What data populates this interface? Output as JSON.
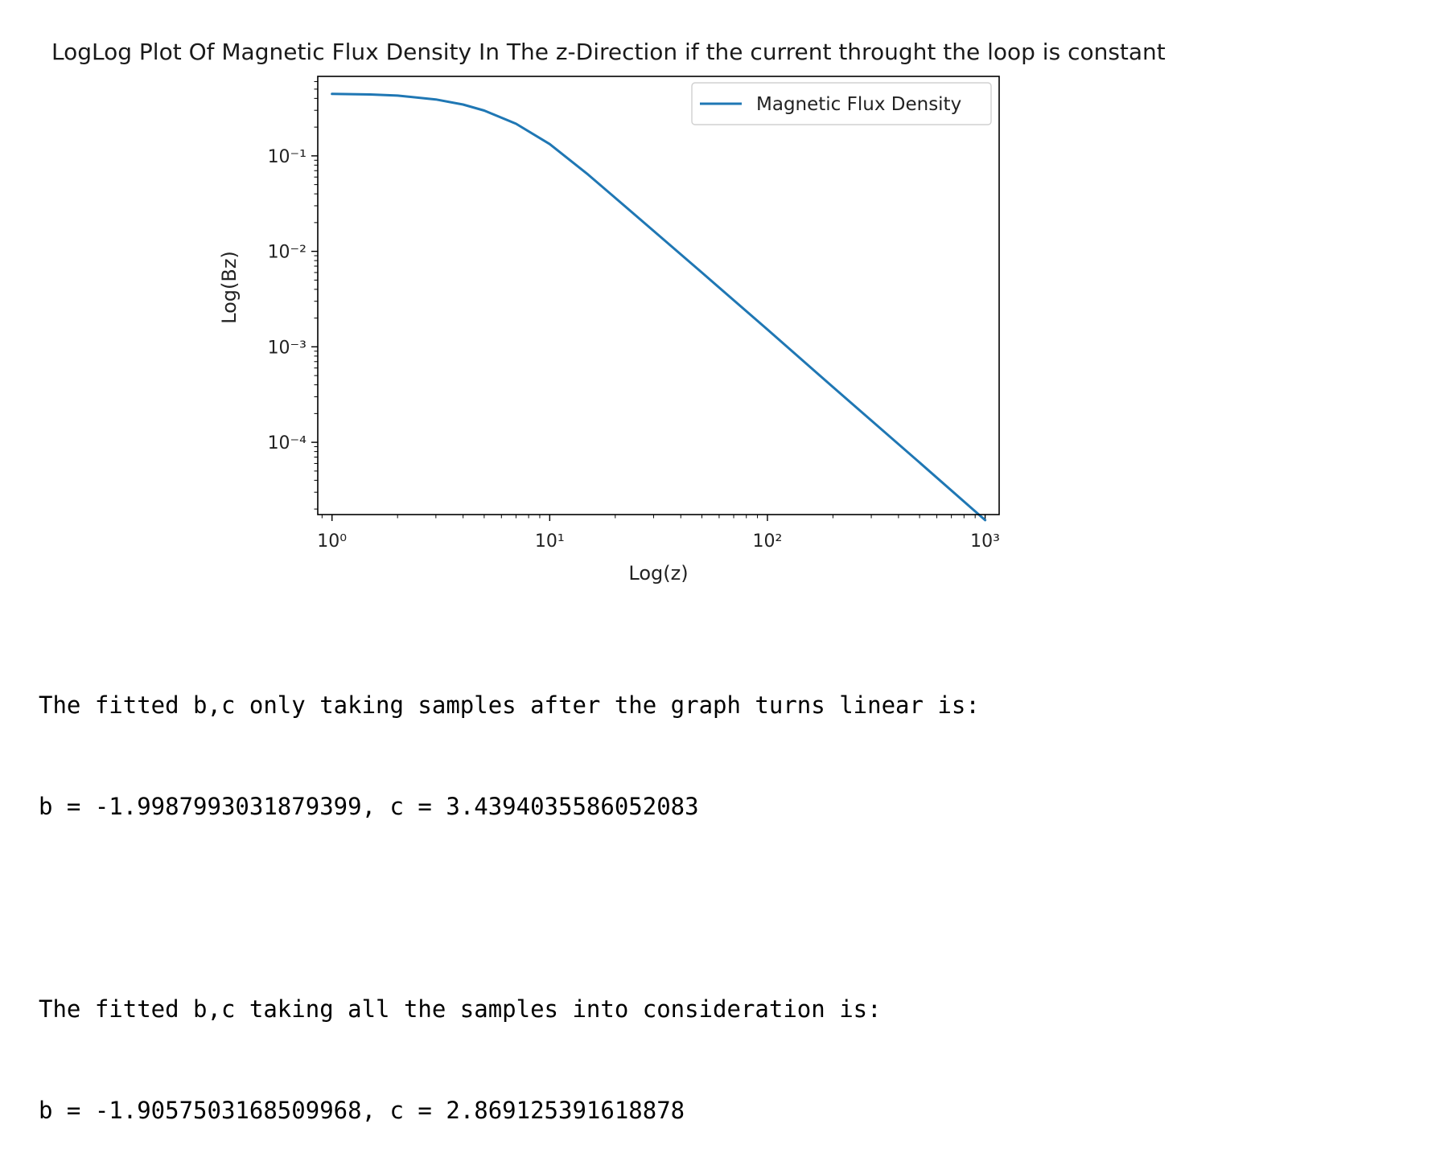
{
  "chart_data": {
    "type": "line",
    "title": "LogLog Plot Of Magnetic Flux Density In The z-Direction if the current throught the loop is constant",
    "xlabel": "Log(z)",
    "ylabel": "Log(Bz)",
    "xscale": "log",
    "yscale": "log",
    "xlim": [
      0.86,
      1160
    ],
    "ylim": [
      1.75e-05,
      0.68
    ],
    "x_ticks": [
      {
        "value": 1,
        "label": "10⁰"
      },
      {
        "value": 10,
        "label": "10¹"
      },
      {
        "value": 100,
        "label": "10²"
      },
      {
        "value": 1000,
        "label": "10³"
      }
    ],
    "y_ticks": [
      {
        "value": 0.1,
        "label": "10⁻¹"
      },
      {
        "value": 0.01,
        "label": "10⁻²"
      },
      {
        "value": 0.001,
        "label": "10⁻³"
      },
      {
        "value": 0.0001,
        "label": "10⁻⁴"
      }
    ],
    "legend": {
      "position": "top-right"
    },
    "grid": false,
    "series": [
      {
        "name": "Magnetic Flux Density",
        "color": "#1f77b4",
        "x": [
          1,
          1.5,
          2,
          3,
          4,
          5,
          7,
          10,
          15,
          20,
          30,
          50,
          100,
          200,
          500,
          1000
        ],
        "values": [
          0.446,
          0.44,
          0.428,
          0.39,
          0.345,
          0.298,
          0.217,
          0.133,
          0.0637,
          0.0363,
          0.0164,
          0.00599,
          0.00152,
          0.000379,
          6.14e-05,
          1.53e-05
        ]
      }
    ]
  },
  "output": {
    "line1": "The fitted b,c only taking samples after the graph turns linear is:",
    "line2": "b = -1.9987993031879399, c = 3.4394035586052083",
    "line3": "The fitted b,c taking all the samples into consideration is:",
    "line4": "b = -1.9057503168509968, c = 2.869125391618878"
  }
}
